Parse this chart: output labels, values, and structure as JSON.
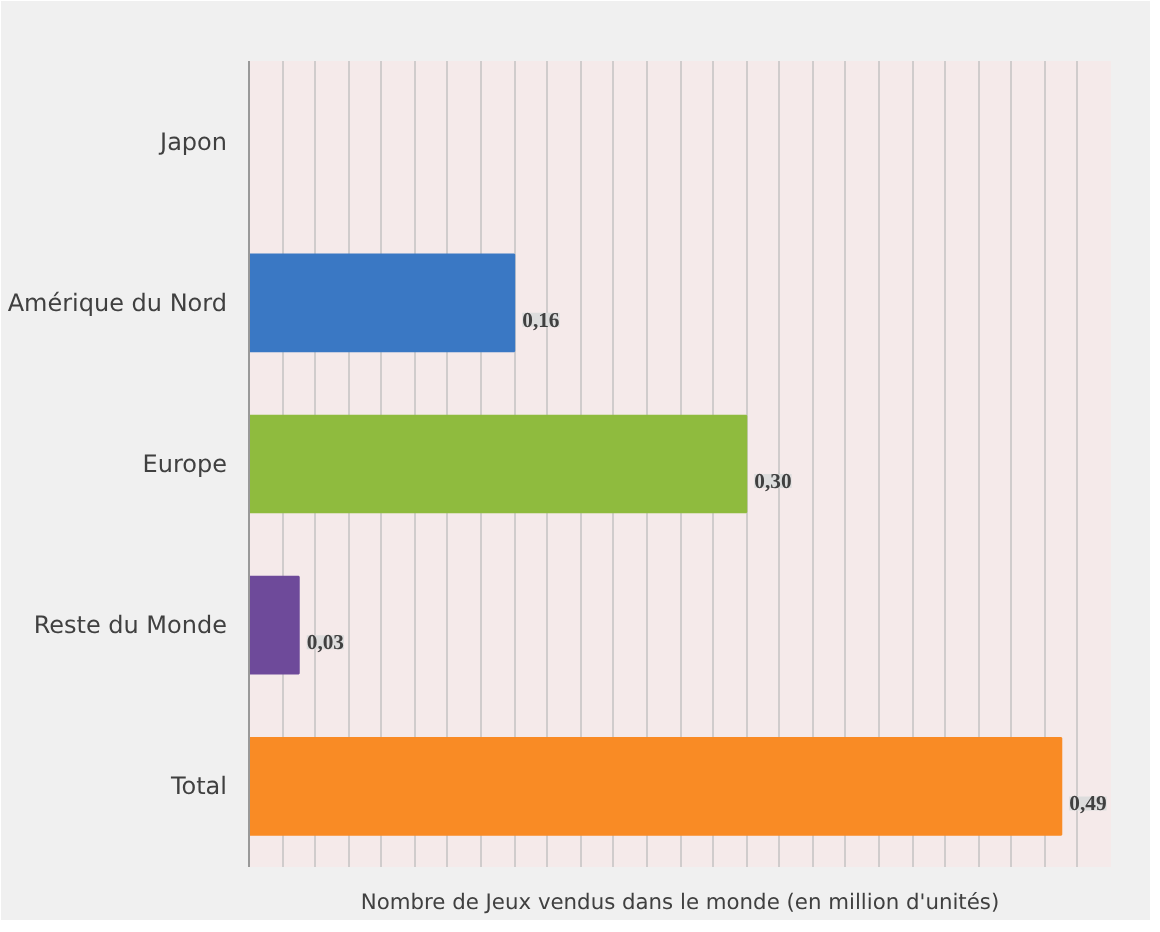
{
  "chart_data": {
    "type": "bar",
    "orientation": "horizontal",
    "categories": [
      "Japon",
      "Amérique du Nord",
      "Europe",
      "Reste du Monde",
      "Total"
    ],
    "values": [
      0,
      0.16,
      0.3,
      0.03,
      0.49
    ],
    "colors": [
      "#5a1518",
      "#3a78c4",
      "#8fbb3e",
      "#6e4a9a",
      "#f98b25"
    ],
    "value_labels": [
      null,
      "0,16",
      "0,30",
      "0,03",
      "0,49"
    ],
    "xlabel": "Nombre de Jeux vendus dans le monde (en million d'unités)",
    "xlim": [
      0,
      0.52
    ],
    "xticks": [
      {
        "value": 0,
        "label": null
      },
      {
        "value": 0.02,
        "label": null
      },
      {
        "value": 0.04,
        "label": null
      },
      {
        "value": 0.06,
        "label": null
      },
      {
        "value": 0.08,
        "label": null
      },
      {
        "value": 0.1,
        "label": null
      },
      {
        "value": 0.12,
        "label": null
      },
      {
        "value": 0.14,
        "label": null
      },
      {
        "value": 0.16,
        "label": null
      },
      {
        "value": 0.18,
        "label": null
      },
      {
        "value": 0.2,
        "label": null
      },
      {
        "value": 0.22,
        "label": null
      },
      {
        "value": 0.24,
        "label": null
      },
      {
        "value": 0.26,
        "label": null
      },
      {
        "value": 0.28,
        "label": null
      },
      {
        "value": 0.3,
        "label": null
      },
      {
        "value": 0.32,
        "label": null
      },
      {
        "value": 0.34,
        "label": null
      },
      {
        "value": 0.36,
        "label": null
      },
      {
        "value": 0.38,
        "label": null
      },
      {
        "value": 0.4,
        "label": null
      },
      {
        "value": 0.42,
        "label": null
      },
      {
        "value": 0.44,
        "label": null
      },
      {
        "value": 0.46,
        "label": null
      },
      {
        "value": 0.48,
        "label": null
      },
      {
        "value": 0.5,
        "label": null
      },
      {
        "value": 0.52,
        "label": null
      }
    ],
    "grid": "x",
    "tick_labels": "y"
  }
}
